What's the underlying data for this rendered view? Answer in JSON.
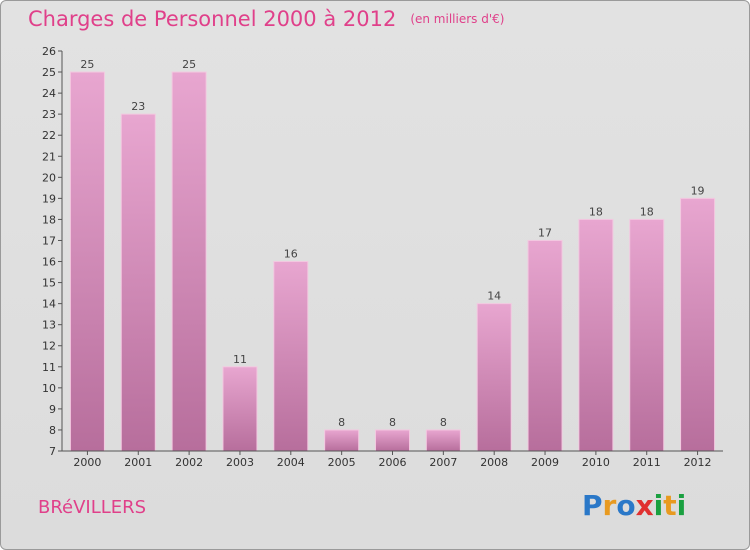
{
  "title": "Charges de Personnel 2000 à 2012",
  "subtitle": "(en milliers d'€)",
  "city": "BRéVILLERS",
  "logo": {
    "text": "Proxiti",
    "colors": [
      "#2a78c8",
      "#e89a20",
      "#2a78c8",
      "#e03030",
      "#1aa040",
      "#e89a20",
      "#1aa040"
    ]
  },
  "colors": {
    "accent": "#e0408a",
    "bar_top": "#e8a6d0",
    "bar_bottom": "#b76e9c",
    "axis": "#555555"
  },
  "chart_data": {
    "type": "bar",
    "categories": [
      "2000",
      "2001",
      "2002",
      "2003",
      "2004",
      "2005",
      "2006",
      "2007",
      "2008",
      "2009",
      "2010",
      "2011",
      "2012"
    ],
    "values": [
      25,
      23,
      25,
      11,
      16,
      8,
      8,
      8,
      14,
      17,
      18,
      18,
      19
    ],
    "data_labels": [
      "25",
      "23",
      "25",
      "11",
      "16",
      "8",
      "8",
      "8",
      "14",
      "17",
      "18",
      "18",
      "19"
    ],
    "ylim": [
      7,
      26
    ],
    "yticks": [
      "7",
      "8",
      "9",
      "10",
      "11",
      "12",
      "13",
      "14",
      "15",
      "16",
      "17",
      "18",
      "19",
      "20",
      "21",
      "22",
      "23",
      "24",
      "25",
      "26"
    ],
    "grid": false,
    "xlabel": "",
    "ylabel": ""
  }
}
